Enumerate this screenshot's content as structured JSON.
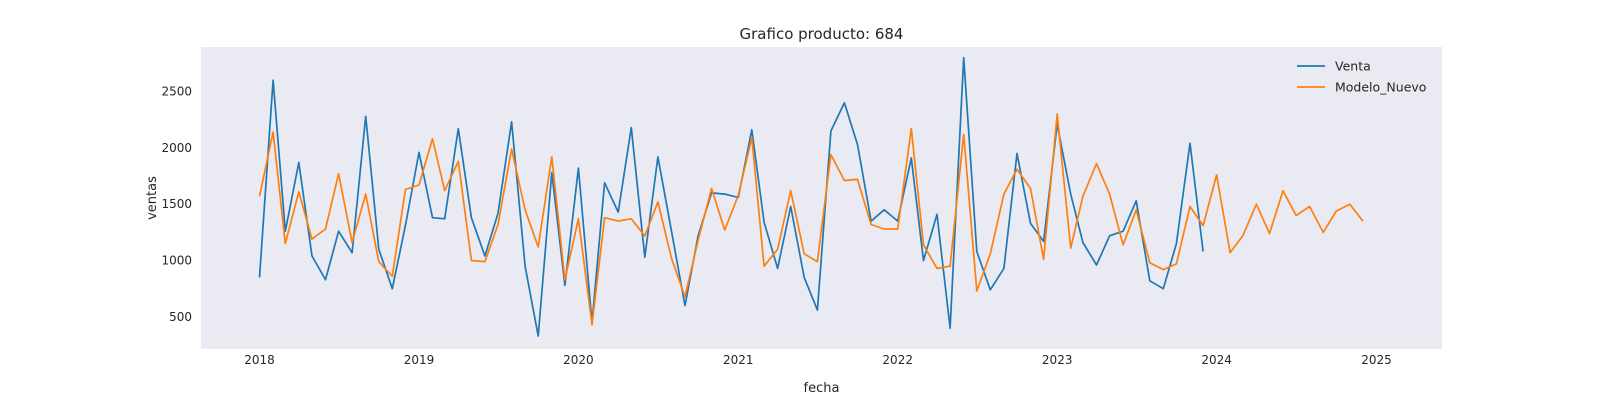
{
  "chart_data": {
    "type": "line",
    "title": "Grafico producto: 684",
    "xlabel": "fecha",
    "ylabel": "ventas",
    "x_ticks": [
      "2018",
      "2019",
      "2020",
      "2021",
      "2022",
      "2023",
      "2024",
      "2025"
    ],
    "y_ticks": [
      "500",
      "1000",
      "1500",
      "2000",
      "2500"
    ],
    "xlim": [
      "2017-08-20",
      "2025-05-31"
    ],
    "ylim": [
      215,
      2895
    ],
    "grid": false,
    "legend_position": "top-right",
    "background_color": "#eaeaf2",
    "series": [
      {
        "name": "Venta",
        "color": "#1f77b4",
        "x": [
          "2018-01-01",
          "2018-02-01",
          "2018-03-01",
          "2018-04-01",
          "2018-05-01",
          "2018-06-01",
          "2018-07-01",
          "2018-08-01",
          "2018-09-01",
          "2018-10-01",
          "2018-11-01",
          "2018-12-01",
          "2019-01-01",
          "2019-02-01",
          "2019-03-01",
          "2019-04-01",
          "2019-05-01",
          "2019-06-01",
          "2019-07-01",
          "2019-08-01",
          "2019-09-01",
          "2019-10-01",
          "2019-11-01",
          "2019-12-01",
          "2020-01-01",
          "2020-02-01",
          "2020-03-01",
          "2020-04-01",
          "2020-05-01",
          "2020-06-01",
          "2020-07-01",
          "2020-08-01",
          "2020-09-01",
          "2020-10-01",
          "2020-11-01",
          "2020-12-01",
          "2021-01-01",
          "2021-02-01",
          "2021-03-01",
          "2021-04-01",
          "2021-05-01",
          "2021-06-01",
          "2021-07-01",
          "2021-08-01",
          "2021-09-01",
          "2021-10-01",
          "2021-11-01",
          "2021-12-01",
          "2022-01-01",
          "2022-02-01",
          "2022-03-01",
          "2022-04-01",
          "2022-05-01",
          "2022-06-01",
          "2022-07-01",
          "2022-08-01",
          "2022-09-01",
          "2022-10-01",
          "2022-11-01",
          "2022-12-01",
          "2023-01-01",
          "2023-02-01",
          "2023-03-01",
          "2023-04-01",
          "2023-05-01",
          "2023-06-01",
          "2023-07-01",
          "2023-08-01",
          "2023-09-01",
          "2023-10-01",
          "2023-11-01",
          "2023-12-01"
        ],
        "values": [
          850,
          2600,
          1260,
          1870,
          1040,
          830,
          1260,
          1070,
          2280,
          1100,
          750,
          1310,
          1960,
          1380,
          1370,
          2170,
          1380,
          1040,
          1420,
          2230,
          950,
          330,
          1780,
          780,
          1820,
          450,
          1690,
          1430,
          2180,
          1030,
          1920,
          1260,
          600,
          1220,
          1600,
          1590,
          1560,
          2160,
          1340,
          930,
          1480,
          850,
          560,
          2150,
          2400,
          2030,
          1350,
          1450,
          1350,
          1910,
          1000,
          1410,
          400,
          2800,
          1080,
          740,
          930,
          1950,
          1330,
          1170,
          2210,
          1590,
          1160,
          960,
          1220,
          1260,
          1530,
          820,
          750,
          1150,
          2040,
          1080
        ]
      },
      {
        "name": "Modelo_Nuevo",
        "color": "#ff7f0e",
        "x": [
          "2018-01-01",
          "2018-02-01",
          "2018-03-01",
          "2018-04-01",
          "2018-05-01",
          "2018-06-01",
          "2018-07-01",
          "2018-08-01",
          "2018-09-01",
          "2018-10-01",
          "2018-11-01",
          "2018-12-01",
          "2019-01-01",
          "2019-02-01",
          "2019-03-01",
          "2019-04-01",
          "2019-05-01",
          "2019-06-01",
          "2019-07-01",
          "2019-08-01",
          "2019-09-01",
          "2019-10-01",
          "2019-11-01",
          "2019-12-01",
          "2020-01-01",
          "2020-02-01",
          "2020-03-01",
          "2020-04-01",
          "2020-05-01",
          "2020-06-01",
          "2020-07-01",
          "2020-08-01",
          "2020-09-01",
          "2020-10-01",
          "2020-11-01",
          "2020-12-01",
          "2021-01-01",
          "2021-02-01",
          "2021-03-01",
          "2021-04-01",
          "2021-05-01",
          "2021-06-01",
          "2021-07-01",
          "2021-08-01",
          "2021-09-01",
          "2021-10-01",
          "2021-11-01",
          "2021-12-01",
          "2022-01-01",
          "2022-02-01",
          "2022-03-01",
          "2022-04-01",
          "2022-05-01",
          "2022-06-01",
          "2022-07-01",
          "2022-08-01",
          "2022-09-01",
          "2022-10-01",
          "2022-11-01",
          "2022-12-01",
          "2023-01-01",
          "2023-02-01",
          "2023-03-01",
          "2023-04-01",
          "2023-05-01",
          "2023-06-01",
          "2023-07-01",
          "2023-08-01",
          "2023-09-01",
          "2023-10-01",
          "2023-11-01",
          "2023-12-01",
          "2024-01-01",
          "2024-02-01",
          "2024-03-01",
          "2024-04-01",
          "2024-05-01",
          "2024-06-01",
          "2024-07-01",
          "2024-08-01",
          "2024-09-01",
          "2024-10-01",
          "2024-11-01",
          "2024-12-01"
        ],
        "values": [
          1570,
          2140,
          1150,
          1610,
          1190,
          1280,
          1770,
          1160,
          1590,
          990,
          860,
          1630,
          1670,
          2080,
          1620,
          1880,
          1000,
          990,
          1320,
          1990,
          1450,
          1120,
          1920,
          830,
          1370,
          430,
          1380,
          1350,
          1370,
          1220,
          1520,
          1020,
          680,
          1180,
          1640,
          1270,
          1580,
          2090,
          950,
          1100,
          1620,
          1060,
          990,
          1940,
          1710,
          1720,
          1320,
          1280,
          1280,
          2170,
          1140,
          930,
          950,
          2120,
          730,
          1060,
          1590,
          1810,
          1640,
          1010,
          2300,
          1110,
          1570,
          1860,
          1590,
          1140,
          1450,
          980,
          920,
          970,
          1480,
          1310,
          1760,
          1070,
          1220,
          1500,
          1240,
          1620,
          1400,
          1480,
          1250,
          1440,
          1500,
          1350
        ]
      }
    ]
  }
}
